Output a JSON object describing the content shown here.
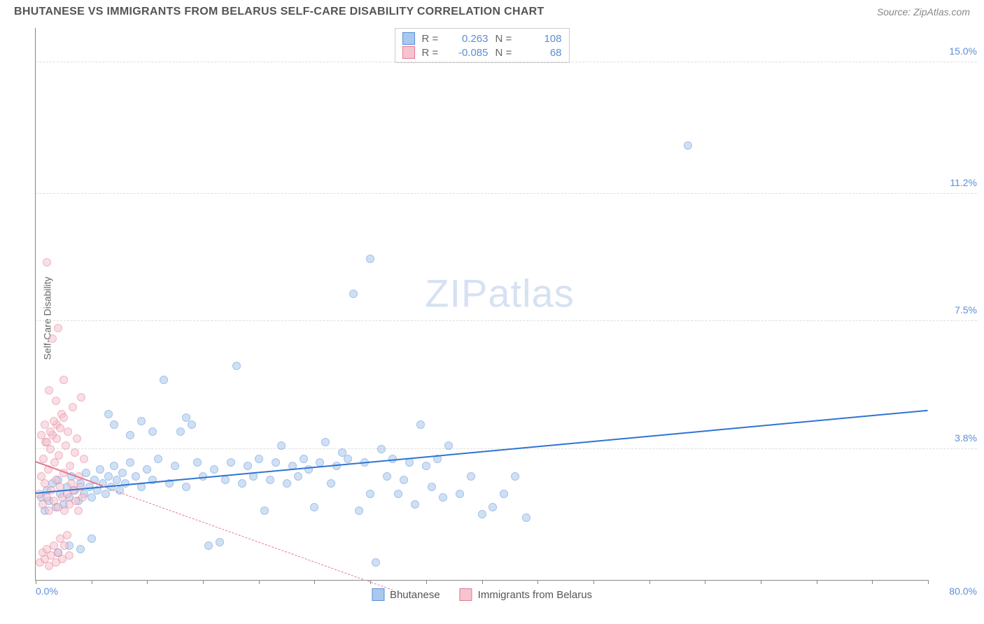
{
  "title": "BHUTANESE VS IMMIGRANTS FROM BELARUS SELF-CARE DISABILITY CORRELATION CHART",
  "source": "Source: ZipAtlas.com",
  "watermark": "ZIPatlas",
  "y_axis_label": "Self-Care Disability",
  "chart": {
    "type": "scatter",
    "background_color": "#ffffff",
    "grid_color": "#dddddd",
    "axis_color": "#888888",
    "label_color": "#5b8fd6",
    "xlim": [
      0,
      80
    ],
    "ylim": [
      0,
      16
    ],
    "x_min_label": "0.0%",
    "x_max_label": "80.0%",
    "y_ticks": [
      {
        "v": 3.8,
        "label": "3.8%"
      },
      {
        "v": 7.5,
        "label": "7.5%"
      },
      {
        "v": 11.2,
        "label": "11.2%"
      },
      {
        "v": 15.0,
        "label": "15.0%"
      }
    ],
    "x_tick_positions": [
      0,
      5,
      10,
      15,
      20,
      25,
      30,
      35,
      40,
      45,
      50,
      55,
      60,
      65,
      70,
      75,
      80
    ],
    "marker_size": 12,
    "series": [
      {
        "name": "Bhutanese",
        "color_fill": "#a9c8ee",
        "color_stroke": "#5b8fd6",
        "r_value": "0.263",
        "n_value": "108",
        "trend": {
          "x1": 0,
          "y1": 2.5,
          "x2": 80,
          "y2": 4.9,
          "color": "#2f74d0",
          "width": 2.5,
          "dash": "solid"
        },
        "points": [
          [
            0.5,
            2.4
          ],
          [
            0.8,
            2.0
          ],
          [
            1.0,
            2.6
          ],
          [
            1.2,
            2.3
          ],
          [
            1.5,
            2.8
          ],
          [
            1.8,
            2.1
          ],
          [
            2.0,
            2.9
          ],
          [
            2.2,
            2.5
          ],
          [
            2.5,
            2.2
          ],
          [
            2.8,
            2.7
          ],
          [
            3.0,
            2.4
          ],
          [
            3.2,
            3.0
          ],
          [
            3.5,
            2.6
          ],
          [
            3.8,
            2.3
          ],
          [
            4.0,
            2.8
          ],
          [
            4.3,
            2.5
          ],
          [
            4.5,
            3.1
          ],
          [
            4.8,
            2.7
          ],
          [
            5.0,
            2.4
          ],
          [
            5.3,
            2.9
          ],
          [
            5.5,
            2.6
          ],
          [
            5.8,
            3.2
          ],
          [
            6.0,
            2.8
          ],
          [
            6.3,
            2.5
          ],
          [
            6.5,
            3.0
          ],
          [
            6.8,
            2.7
          ],
          [
            7.0,
            3.3
          ],
          [
            7.3,
            2.9
          ],
          [
            7.5,
            2.6
          ],
          [
            7.8,
            3.1
          ],
          [
            8.0,
            2.8
          ],
          [
            8.5,
            3.4
          ],
          [
            9.0,
            3.0
          ],
          [
            9.5,
            2.7
          ],
          [
            10.0,
            3.2
          ],
          [
            10.5,
            2.9
          ],
          [
            11.0,
            3.5
          ],
          [
            11.5,
            5.8
          ],
          [
            12.0,
            2.8
          ],
          [
            12.5,
            3.3
          ],
          [
            13.0,
            4.3
          ],
          [
            13.5,
            2.7
          ],
          [
            14.0,
            4.5
          ],
          [
            14.5,
            3.4
          ],
          [
            15.0,
            3.0
          ],
          [
            15.5,
            1.0
          ],
          [
            16.0,
            3.2
          ],
          [
            16.5,
            1.1
          ],
          [
            17.0,
            2.9
          ],
          [
            17.5,
            3.4
          ],
          [
            18.0,
            6.2
          ],
          [
            18.5,
            2.8
          ],
          [
            19.0,
            3.3
          ],
          [
            19.5,
            3.0
          ],
          [
            20.0,
            3.5
          ],
          [
            20.5,
            2.0
          ],
          [
            21.0,
            2.9
          ],
          [
            21.5,
            3.4
          ],
          [
            22.0,
            3.9
          ],
          [
            22.5,
            2.8
          ],
          [
            23.0,
            3.3
          ],
          [
            23.5,
            3.0
          ],
          [
            24.0,
            3.5
          ],
          [
            24.5,
            3.2
          ],
          [
            25.0,
            2.1
          ],
          [
            25.5,
            3.4
          ],
          [
            26.0,
            4.0
          ],
          [
            26.5,
            2.8
          ],
          [
            27.0,
            3.3
          ],
          [
            27.5,
            3.7
          ],
          [
            28.0,
            3.5
          ],
          [
            28.5,
            8.3
          ],
          [
            29.0,
            2.0
          ],
          [
            29.5,
            3.4
          ],
          [
            30.0,
            2.5
          ],
          [
            30.5,
            0.5
          ],
          [
            31.0,
            3.8
          ],
          [
            31.5,
            3.0
          ],
          [
            32.0,
            3.5
          ],
          [
            32.5,
            2.5
          ],
          [
            33.0,
            2.9
          ],
          [
            33.5,
            3.4
          ],
          [
            34.0,
            2.2
          ],
          [
            34.5,
            4.5
          ],
          [
            35.0,
            3.3
          ],
          [
            35.5,
            2.7
          ],
          [
            36.0,
            3.5
          ],
          [
            36.5,
            2.4
          ],
          [
            37.0,
            3.9
          ],
          [
            38.0,
            2.5
          ],
          [
            39.0,
            3.0
          ],
          [
            40.0,
            1.9
          ],
          [
            41.0,
            2.1
          ],
          [
            42.0,
            2.5
          ],
          [
            43.0,
            3.0
          ],
          [
            44.0,
            1.8
          ],
          [
            30.0,
            9.3
          ],
          [
            58.5,
            12.6
          ],
          [
            2.0,
            0.8
          ],
          [
            3.0,
            1.0
          ],
          [
            4.0,
            0.9
          ],
          [
            5.0,
            1.2
          ],
          [
            6.5,
            4.8
          ],
          [
            7.0,
            4.5
          ],
          [
            8.5,
            4.2
          ],
          [
            9.5,
            4.6
          ],
          [
            10.5,
            4.3
          ],
          [
            13.5,
            4.7
          ]
        ]
      },
      {
        "name": "Immigrants from Belarus",
        "color_fill": "#f5c4cf",
        "color_stroke": "#e47a94",
        "r_value": "-0.085",
        "n_value": "68",
        "trend_solid": {
          "x1": 0,
          "y1": 3.4,
          "x2": 6,
          "y2": 2.7,
          "color": "#e47a94",
          "width": 2,
          "dash": "solid"
        },
        "trend_dash": {
          "x1": 6,
          "y1": 2.7,
          "x2": 32,
          "y2": -0.3,
          "color": "#e47a94",
          "width": 1,
          "dash": "dashed"
        },
        "points": [
          [
            0.3,
            2.5
          ],
          [
            0.5,
            3.0
          ],
          [
            0.6,
            2.2
          ],
          [
            0.7,
            3.5
          ],
          [
            0.8,
            2.8
          ],
          [
            0.9,
            4.0
          ],
          [
            1.0,
            2.4
          ],
          [
            1.1,
            3.2
          ],
          [
            1.2,
            2.0
          ],
          [
            1.3,
            3.8
          ],
          [
            1.4,
            2.6
          ],
          [
            1.5,
            4.2
          ],
          [
            1.6,
            2.3
          ],
          [
            1.7,
            3.4
          ],
          [
            1.8,
            2.9
          ],
          [
            1.9,
            4.5
          ],
          [
            2.0,
            2.1
          ],
          [
            2.1,
            3.6
          ],
          [
            2.2,
            2.7
          ],
          [
            2.3,
            4.8
          ],
          [
            2.4,
            2.4
          ],
          [
            2.5,
            3.1
          ],
          [
            2.6,
            2.0
          ],
          [
            2.7,
            3.9
          ],
          [
            2.8,
            2.5
          ],
          [
            2.9,
            4.3
          ],
          [
            3.0,
            2.2
          ],
          [
            3.1,
            3.3
          ],
          [
            3.2,
            2.8
          ],
          [
            3.3,
            5.0
          ],
          [
            3.4,
            2.6
          ],
          [
            3.5,
            3.7
          ],
          [
            3.6,
            2.3
          ],
          [
            3.7,
            4.1
          ],
          [
            3.8,
            2.0
          ],
          [
            3.9,
            3.0
          ],
          [
            4.0,
            2.7
          ],
          [
            4.1,
            5.3
          ],
          [
            4.2,
            2.4
          ],
          [
            4.3,
            3.5
          ],
          [
            0.4,
            0.5
          ],
          [
            0.6,
            0.8
          ],
          [
            0.8,
            0.6
          ],
          [
            1.0,
            0.9
          ],
          [
            1.2,
            0.4
          ],
          [
            1.4,
            0.7
          ],
          [
            1.6,
            1.0
          ],
          [
            1.8,
            0.5
          ],
          [
            2.0,
            0.8
          ],
          [
            2.2,
            1.2
          ],
          [
            2.4,
            0.6
          ],
          [
            2.6,
            1.0
          ],
          [
            2.8,
            1.3
          ],
          [
            3.0,
            0.7
          ],
          [
            1.0,
            9.2
          ],
          [
            1.5,
            7.0
          ],
          [
            2.0,
            7.3
          ],
          [
            1.2,
            5.5
          ],
          [
            1.8,
            5.2
          ],
          [
            2.5,
            5.8
          ],
          [
            0.5,
            4.2
          ],
          [
            0.8,
            4.5
          ],
          [
            1.0,
            4.0
          ],
          [
            1.3,
            4.3
          ],
          [
            1.6,
            4.6
          ],
          [
            1.9,
            4.1
          ],
          [
            2.2,
            4.4
          ],
          [
            2.5,
            4.7
          ]
        ]
      }
    ]
  },
  "legend_top": {
    "r_label": "R =",
    "n_label": "N ="
  },
  "legend_bottom": {
    "items": [
      "Bhutanese",
      "Immigrants from Belarus"
    ]
  }
}
